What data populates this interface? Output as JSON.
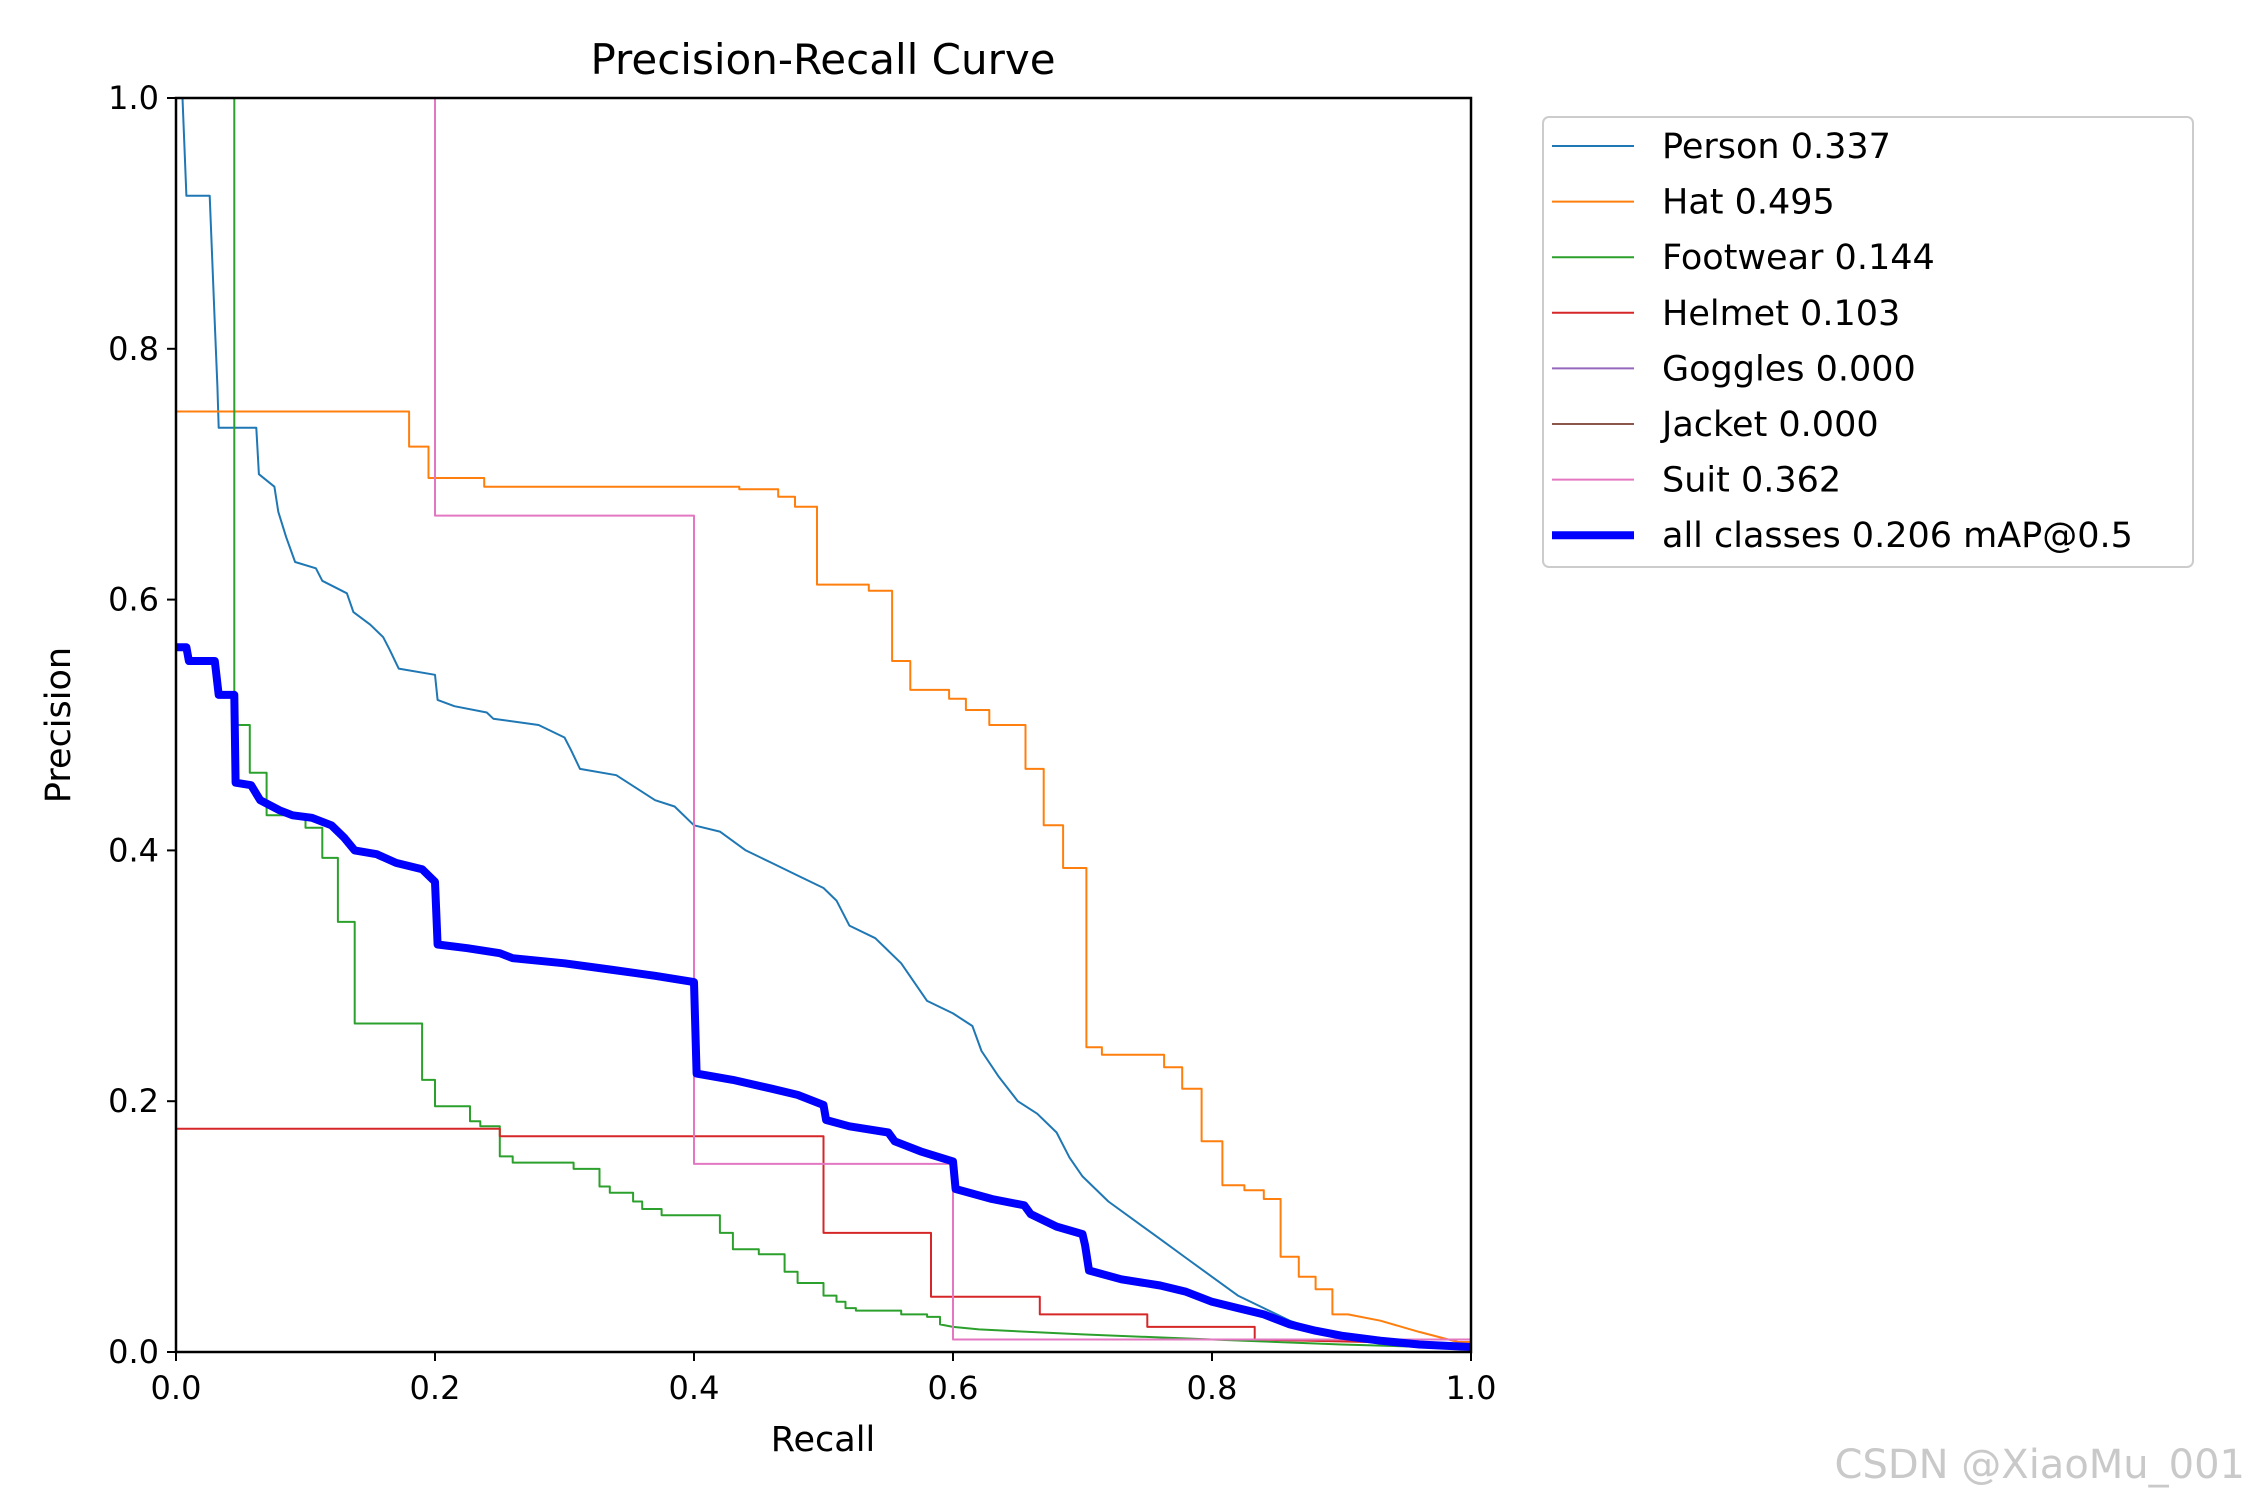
{
  "chart_data": {
    "type": "line",
    "title": "Precision-Recall Curve",
    "xlabel": "Recall",
    "ylabel": "Precision",
    "xlim": [
      0,
      1
    ],
    "ylim": [
      0,
      1
    ],
    "xticks": [
      "0.0",
      "0.2",
      "0.4",
      "0.6",
      "0.8",
      "1.0"
    ],
    "yticks": [
      "0.0",
      "0.2",
      "0.4",
      "0.6",
      "0.8",
      "1.0"
    ],
    "legend_position": "outside-right",
    "series": [
      {
        "name": "Person",
        "legend": "Person 0.337",
        "color": "#1f77b4",
        "width": 2,
        "points": [
          [
            0.005,
            1.0
          ],
          [
            0.008,
            0.922
          ],
          [
            0.026,
            0.922
          ],
          [
            0.028,
            0.87
          ],
          [
            0.03,
            0.82
          ],
          [
            0.032,
            0.77
          ],
          [
            0.033,
            0.737
          ],
          [
            0.062,
            0.737
          ],
          [
            0.064,
            0.7
          ],
          [
            0.076,
            0.69
          ],
          [
            0.079,
            0.67
          ],
          [
            0.085,
            0.65
          ],
          [
            0.092,
            0.63
          ],
          [
            0.108,
            0.625
          ],
          [
            0.113,
            0.615
          ],
          [
            0.132,
            0.605
          ],
          [
            0.137,
            0.59
          ],
          [
            0.15,
            0.58
          ],
          [
            0.16,
            0.57
          ],
          [
            0.165,
            0.56
          ],
          [
            0.172,
            0.545
          ],
          [
            0.2,
            0.54
          ],
          [
            0.202,
            0.52
          ],
          [
            0.215,
            0.515
          ],
          [
            0.24,
            0.51
          ],
          [
            0.245,
            0.505
          ],
          [
            0.28,
            0.5
          ],
          [
            0.3,
            0.49
          ],
          [
            0.305,
            0.48
          ],
          [
            0.312,
            0.465
          ],
          [
            0.34,
            0.46
          ],
          [
            0.355,
            0.45
          ],
          [
            0.37,
            0.44
          ],
          [
            0.385,
            0.435
          ],
          [
            0.4,
            0.42
          ],
          [
            0.42,
            0.415
          ],
          [
            0.44,
            0.4
          ],
          [
            0.46,
            0.39
          ],
          [
            0.48,
            0.38
          ],
          [
            0.5,
            0.37
          ],
          [
            0.51,
            0.36
          ],
          [
            0.52,
            0.34
          ],
          [
            0.54,
            0.33
          ],
          [
            0.56,
            0.31
          ],
          [
            0.57,
            0.295
          ],
          [
            0.58,
            0.28
          ],
          [
            0.6,
            0.27
          ],
          [
            0.615,
            0.26
          ],
          [
            0.622,
            0.24
          ],
          [
            0.635,
            0.22
          ],
          [
            0.65,
            0.2
          ],
          [
            0.665,
            0.19
          ],
          [
            0.68,
            0.175
          ],
          [
            0.69,
            0.155
          ],
          [
            0.7,
            0.14
          ],
          [
            0.72,
            0.12
          ],
          [
            0.74,
            0.105
          ],
          [
            0.76,
            0.09
          ],
          [
            0.78,
            0.075
          ],
          [
            0.8,
            0.06
          ],
          [
            0.82,
            0.045
          ],
          [
            0.84,
            0.035
          ],
          [
            0.86,
            0.025
          ],
          [
            0.88,
            0.018
          ],
          [
            0.9,
            0.012
          ],
          [
            0.93,
            0.008
          ],
          [
            0.96,
            0.005
          ],
          [
            1.0,
            0.003
          ]
        ]
      },
      {
        "name": "Hat",
        "legend": "Hat 0.495",
        "color": "#ff7f0e",
        "width": 2,
        "points": [
          [
            0.0,
            0.75
          ],
          [
            0.18,
            0.75
          ],
          [
            0.18,
            0.722
          ],
          [
            0.195,
            0.722
          ],
          [
            0.195,
            0.697
          ],
          [
            0.238,
            0.697
          ],
          [
            0.238,
            0.69
          ],
          [
            0.435,
            0.69
          ],
          [
            0.435,
            0.688
          ],
          [
            0.465,
            0.688
          ],
          [
            0.465,
            0.682
          ],
          [
            0.478,
            0.682
          ],
          [
            0.478,
            0.674
          ],
          [
            0.495,
            0.674
          ],
          [
            0.495,
            0.612
          ],
          [
            0.535,
            0.612
          ],
          [
            0.535,
            0.607
          ],
          [
            0.553,
            0.607
          ],
          [
            0.553,
            0.551
          ],
          [
            0.567,
            0.551
          ],
          [
            0.567,
            0.528
          ],
          [
            0.597,
            0.528
          ],
          [
            0.597,
            0.521
          ],
          [
            0.61,
            0.521
          ],
          [
            0.61,
            0.512
          ],
          [
            0.628,
            0.512
          ],
          [
            0.628,
            0.5
          ],
          [
            0.656,
            0.5
          ],
          [
            0.656,
            0.465
          ],
          [
            0.67,
            0.465
          ],
          [
            0.67,
            0.42
          ],
          [
            0.685,
            0.42
          ],
          [
            0.685,
            0.386
          ],
          [
            0.703,
            0.386
          ],
          [
            0.703,
            0.243
          ],
          [
            0.715,
            0.243
          ],
          [
            0.715,
            0.237
          ],
          [
            0.763,
            0.237
          ],
          [
            0.763,
            0.227
          ],
          [
            0.777,
            0.227
          ],
          [
            0.777,
            0.21
          ],
          [
            0.792,
            0.21
          ],
          [
            0.792,
            0.168
          ],
          [
            0.808,
            0.168
          ],
          [
            0.808,
            0.133
          ],
          [
            0.825,
            0.133
          ],
          [
            0.825,
            0.129
          ],
          [
            0.84,
            0.129
          ],
          [
            0.84,
            0.122
          ],
          [
            0.853,
            0.122
          ],
          [
            0.853,
            0.076
          ],
          [
            0.867,
            0.076
          ],
          [
            0.867,
            0.06
          ],
          [
            0.88,
            0.06
          ],
          [
            0.88,
            0.05
          ],
          [
            0.893,
            0.05
          ],
          [
            0.893,
            0.03
          ],
          [
            0.905,
            0.03
          ],
          [
            0.93,
            0.025
          ],
          [
            0.96,
            0.016
          ],
          [
            0.99,
            0.008
          ],
          [
            1.0,
            0.008
          ]
        ]
      },
      {
        "name": "Footwear",
        "legend": "Footwear 0.144",
        "color": "#2ca02c",
        "width": 2,
        "points": [
          [
            0.045,
            1.0
          ],
          [
            0.045,
            0.5
          ],
          [
            0.057,
            0.5
          ],
          [
            0.057,
            0.462
          ],
          [
            0.07,
            0.462
          ],
          [
            0.07,
            0.428
          ],
          [
            0.1,
            0.428
          ],
          [
            0.1,
            0.418
          ],
          [
            0.113,
            0.418
          ],
          [
            0.113,
            0.394
          ],
          [
            0.125,
            0.394
          ],
          [
            0.125,
            0.343
          ],
          [
            0.138,
            0.343
          ],
          [
            0.138,
            0.262
          ],
          [
            0.19,
            0.262
          ],
          [
            0.19,
            0.217
          ],
          [
            0.2,
            0.217
          ],
          [
            0.2,
            0.196
          ],
          [
            0.227,
            0.196
          ],
          [
            0.227,
            0.184
          ],
          [
            0.235,
            0.184
          ],
          [
            0.235,
            0.18
          ],
          [
            0.25,
            0.18
          ],
          [
            0.25,
            0.156
          ],
          [
            0.26,
            0.156
          ],
          [
            0.26,
            0.151
          ],
          [
            0.307,
            0.151
          ],
          [
            0.307,
            0.146
          ],
          [
            0.327,
            0.146
          ],
          [
            0.327,
            0.132
          ],
          [
            0.335,
            0.132
          ],
          [
            0.335,
            0.127
          ],
          [
            0.353,
            0.127
          ],
          [
            0.353,
            0.12
          ],
          [
            0.36,
            0.12
          ],
          [
            0.36,
            0.114
          ],
          [
            0.375,
            0.114
          ],
          [
            0.375,
            0.109
          ],
          [
            0.42,
            0.109
          ],
          [
            0.42,
            0.095
          ],
          [
            0.43,
            0.095
          ],
          [
            0.43,
            0.082
          ],
          [
            0.45,
            0.082
          ],
          [
            0.45,
            0.078
          ],
          [
            0.47,
            0.078
          ],
          [
            0.47,
            0.064
          ],
          [
            0.48,
            0.064
          ],
          [
            0.48,
            0.055
          ],
          [
            0.5,
            0.055
          ],
          [
            0.5,
            0.045
          ],
          [
            0.51,
            0.045
          ],
          [
            0.51,
            0.04
          ],
          [
            0.517,
            0.04
          ],
          [
            0.517,
            0.035
          ],
          [
            0.525,
            0.035
          ],
          [
            0.525,
            0.033
          ],
          [
            0.56,
            0.033
          ],
          [
            0.56,
            0.03
          ],
          [
            0.58,
            0.03
          ],
          [
            0.58,
            0.028
          ],
          [
            0.59,
            0.028
          ],
          [
            0.59,
            0.022
          ],
          [
            0.6,
            0.02
          ],
          [
            0.62,
            0.018
          ],
          [
            0.7,
            0.014
          ],
          [
            0.8,
            0.01
          ],
          [
            0.9,
            0.006
          ],
          [
            1.0,
            0.003
          ]
        ]
      },
      {
        "name": "Helmet",
        "legend": "Helmet 0.103",
        "color": "#d62728",
        "width": 2,
        "points": [
          [
            0.0,
            0.178
          ],
          [
            0.25,
            0.178
          ],
          [
            0.25,
            0.172
          ],
          [
            0.5,
            0.172
          ],
          [
            0.5,
            0.095
          ],
          [
            0.583,
            0.095
          ],
          [
            0.583,
            0.044
          ],
          [
            0.667,
            0.044
          ],
          [
            0.667,
            0.03
          ],
          [
            0.75,
            0.03
          ],
          [
            0.75,
            0.02
          ],
          [
            0.833,
            0.02
          ],
          [
            0.833,
            0.01
          ],
          [
            0.92,
            0.008
          ],
          [
            1.0,
            0.005
          ]
        ]
      },
      {
        "name": "Goggles",
        "legend": "Goggles 0.000",
        "color": "#9467bd",
        "width": 2,
        "points": []
      },
      {
        "name": "Jacket",
        "legend": "Jacket 0.000",
        "color": "#8c564b",
        "width": 2,
        "points": []
      },
      {
        "name": "Suit",
        "legend": "Suit 0.362",
        "color": "#e377c2",
        "width": 2,
        "points": [
          [
            0.2,
            1.0
          ],
          [
            0.2,
            0.667
          ],
          [
            0.4,
            0.667
          ],
          [
            0.4,
            0.15
          ],
          [
            0.6,
            0.15
          ],
          [
            0.6,
            0.01
          ],
          [
            1.0,
            0.01
          ]
        ]
      },
      {
        "name": "all classes",
        "legend": "all classes 0.206 mAP@0.5",
        "color": "#0000ff",
        "width": 8,
        "points": [
          [
            0.0,
            0.562
          ],
          [
            0.008,
            0.562
          ],
          [
            0.01,
            0.551
          ],
          [
            0.03,
            0.551
          ],
          [
            0.033,
            0.524
          ],
          [
            0.045,
            0.524
          ],
          [
            0.046,
            0.454
          ],
          [
            0.058,
            0.452
          ],
          [
            0.065,
            0.44
          ],
          [
            0.08,
            0.432
          ],
          [
            0.09,
            0.428
          ],
          [
            0.105,
            0.426
          ],
          [
            0.12,
            0.42
          ],
          [
            0.13,
            0.41
          ],
          [
            0.138,
            0.4
          ],
          [
            0.155,
            0.397
          ],
          [
            0.17,
            0.39
          ],
          [
            0.19,
            0.385
          ],
          [
            0.2,
            0.375
          ],
          [
            0.202,
            0.325
          ],
          [
            0.225,
            0.322
          ],
          [
            0.25,
            0.318
          ],
          [
            0.26,
            0.314
          ],
          [
            0.3,
            0.31
          ],
          [
            0.335,
            0.305
          ],
          [
            0.37,
            0.3
          ],
          [
            0.4,
            0.295
          ],
          [
            0.402,
            0.222
          ],
          [
            0.43,
            0.217
          ],
          [
            0.46,
            0.21
          ],
          [
            0.48,
            0.205
          ],
          [
            0.5,
            0.197
          ],
          [
            0.502,
            0.185
          ],
          [
            0.52,
            0.18
          ],
          [
            0.55,
            0.175
          ],
          [
            0.555,
            0.168
          ],
          [
            0.575,
            0.16
          ],
          [
            0.6,
            0.152
          ],
          [
            0.602,
            0.13
          ],
          [
            0.63,
            0.122
          ],
          [
            0.655,
            0.117
          ],
          [
            0.66,
            0.11
          ],
          [
            0.68,
            0.1
          ],
          [
            0.7,
            0.094
          ],
          [
            0.702,
            0.085
          ],
          [
            0.705,
            0.065
          ],
          [
            0.73,
            0.058
          ],
          [
            0.76,
            0.053
          ],
          [
            0.78,
            0.048
          ],
          [
            0.8,
            0.04
          ],
          [
            0.82,
            0.035
          ],
          [
            0.84,
            0.03
          ],
          [
            0.86,
            0.022
          ],
          [
            0.88,
            0.017
          ],
          [
            0.9,
            0.013
          ],
          [
            0.93,
            0.009
          ],
          [
            0.96,
            0.006
          ],
          [
            1.0,
            0.004
          ]
        ]
      }
    ]
  },
  "watermark": "CSDN @XiaoMu_001"
}
